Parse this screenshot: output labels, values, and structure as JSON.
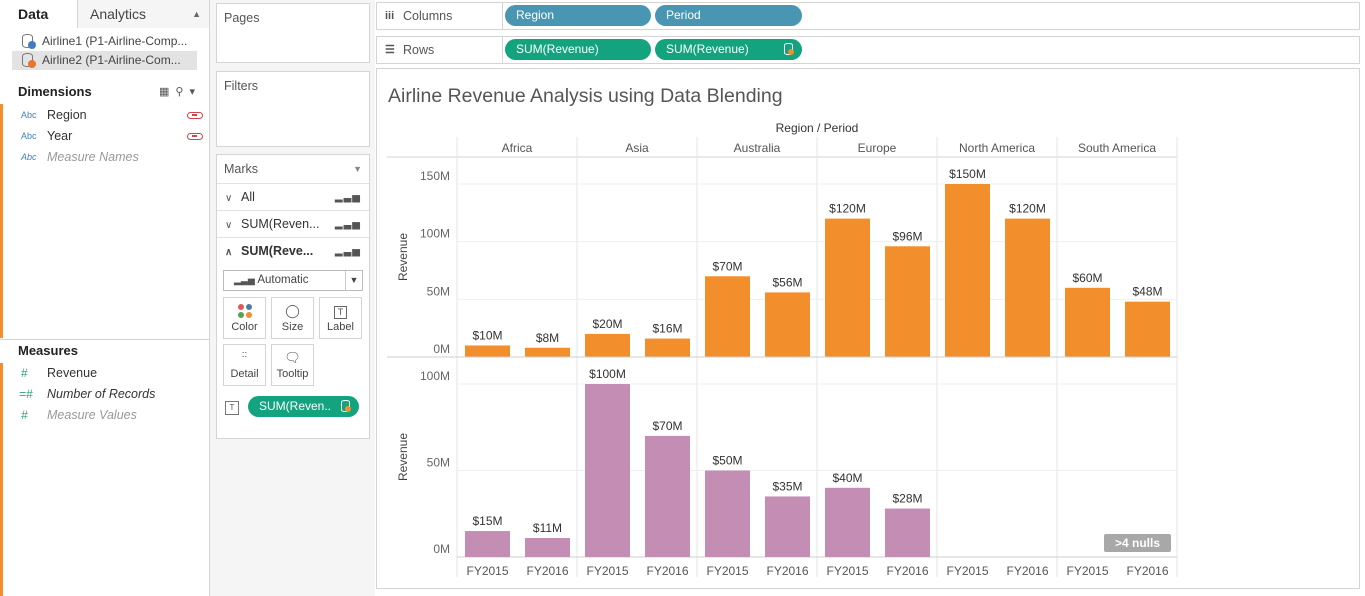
{
  "left_pane": {
    "tabs": {
      "data": "Data",
      "analytics": "Analytics"
    },
    "data_sources": [
      {
        "label": "Airline1 (P1-Airline-Comp...",
        "badge_color": "#3f7fbf"
      },
      {
        "label": "Airline2 (P1-Airline-Com...",
        "badge_color": "#e8762c"
      }
    ],
    "dimensions_title": "Dimensions",
    "dimensions": [
      {
        "type": "Abc",
        "label": "Region",
        "linked": true
      },
      {
        "type": "Abc",
        "label": "Year",
        "linked": true
      },
      {
        "type": "Abc",
        "label": "Measure Names",
        "linked": false
      }
    ],
    "measures_title": "Measures",
    "measures": [
      {
        "type": "#",
        "label": "Revenue"
      },
      {
        "type": "=#",
        "label": "Number of Records"
      },
      {
        "type": "#",
        "label": "Measure Values"
      }
    ]
  },
  "cards": {
    "pages": "Pages",
    "filters": "Filters",
    "marks": "Marks",
    "marks_rows": [
      {
        "chevron": "∨",
        "label": "All"
      },
      {
        "chevron": "∨",
        "label": "SUM(Reven..."
      },
      {
        "chevron": "∧",
        "label": "SUM(Reve..."
      }
    ],
    "mark_type": "Automatic",
    "buttons": {
      "color": "Color",
      "size": "Size",
      "label": "Label",
      "detail": "Detail",
      "tooltip": "Tooltip"
    },
    "label_pill": "SUM(Reven.."
  },
  "shelves": {
    "columns_label": "Columns",
    "rows_label": "Rows",
    "columns_pills": [
      "Region",
      "Period"
    ],
    "rows_pills": [
      "SUM(Revenue)",
      "SUM(Revenue)"
    ]
  },
  "viz": {
    "title": "Airline Revenue Analysis using Data Blending",
    "null_badge": ">4 nulls"
  },
  "chart_data": {
    "type": "bar",
    "column_header": "Region / Period",
    "regions": [
      "Africa",
      "Asia",
      "Australia",
      "Europe",
      "North America",
      "South America"
    ],
    "periods": [
      "FY2015",
      "FY2016"
    ],
    "colors": {
      "top": "#f28e2b",
      "bottom": "#c48db3"
    },
    "panes": [
      {
        "ylabel": "Revenue",
        "yticks": [
          "0M",
          "50M",
          "100M",
          "150M"
        ],
        "ylim": [
          0,
          150
        ],
        "values": [
          [
            10,
            8
          ],
          [
            20,
            16
          ],
          [
            70,
            56
          ],
          [
            120,
            96
          ],
          [
            150,
            120
          ],
          [
            60,
            48
          ]
        ],
        "labels": [
          [
            "$10M",
            "$8M"
          ],
          [
            "$20M",
            "$16M"
          ],
          [
            "$70M",
            "$56M"
          ],
          [
            "$120M",
            "$96M"
          ],
          [
            "$150M",
            "$120M"
          ],
          [
            "$60M",
            "$48M"
          ]
        ]
      },
      {
        "ylabel": "Revenue",
        "yticks": [
          "0M",
          "50M",
          "100M"
        ],
        "ylim": [
          0,
          100
        ],
        "values": [
          [
            15,
            11
          ],
          [
            100,
            70
          ],
          [
            50,
            35
          ],
          [
            40,
            28
          ],
          [
            null,
            null
          ],
          [
            null,
            null
          ]
        ],
        "labels": [
          [
            "$15M",
            "$11M"
          ],
          [
            "$100M",
            "$70M"
          ],
          [
            "$50M",
            "$35M"
          ],
          [
            "$40M",
            "$28M"
          ],
          [
            "",
            ""
          ],
          [
            "",
            ""
          ]
        ]
      }
    ]
  }
}
